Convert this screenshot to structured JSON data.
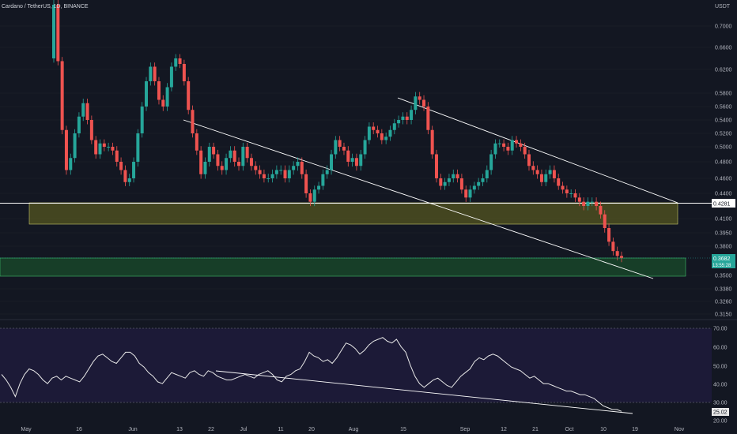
{
  "header": {
    "symbol_title": "Cardano / TetherUS, 1D, BINANCE",
    "currency": "USDT"
  },
  "colors": {
    "background": "#131722",
    "up": "#26a69a",
    "down": "#ef5350",
    "resistance_zone": "#8a8a2a",
    "support_zone": "#1f7a3c",
    "rsi_band": "#1e1b3a",
    "line": "#ffffff"
  },
  "price_axis": {
    "ticks": [
      "0.7000",
      "0.6600",
      "0.6200",
      "0.5800",
      "0.5600",
      "0.5400",
      "0.5200",
      "0.5000",
      "0.4800",
      "0.4600",
      "0.4400",
      "0.4100",
      "0.3950",
      "0.3800",
      "0.3500",
      "0.3380",
      "0.3260",
      "0.3150"
    ],
    "level_tag": "0.4281",
    "last_price_tag": "0.3682",
    "countdown_tag": "13:55:28"
  },
  "rsi_axis": {
    "ticks": [
      "70.00",
      "60.00",
      "50.00",
      "40.00",
      "30.00",
      "20.00"
    ],
    "value_tag": "25.02"
  },
  "time_axis": {
    "ticks": [
      "May",
      "16",
      "Jun",
      "13",
      "22",
      "Jul",
      "11",
      "20",
      "Aug",
      "15",
      "Sep",
      "12",
      "21",
      "Oct",
      "10",
      "19",
      "Nov"
    ]
  },
  "chart_data": {
    "type": "candlestick",
    "symbol": "Cardano / TetherUS",
    "interval": "1D",
    "exchange": "BINANCE",
    "price_range": [
      0.31,
      0.75
    ],
    "horizontal_level": 0.4281,
    "resistance_zone": [
      0.403,
      0.4281
    ],
    "support_zone": [
      0.35,
      0.368
    ],
    "last_price": 0.3682,
    "close_series_estimated": [
      0.74,
      0.635,
      0.525,
      0.47,
      0.485,
      0.52,
      0.545,
      0.565,
      0.54,
      0.51,
      0.49,
      0.505,
      0.5,
      0.5,
      0.495,
      0.48,
      0.47,
      0.455,
      0.46,
      0.48,
      0.52,
      0.56,
      0.6,
      0.625,
      0.6,
      0.57,
      0.56,
      0.59,
      0.625,
      0.64,
      0.63,
      0.6,
      0.555,
      0.52,
      0.495,
      0.465,
      0.48,
      0.5,
      0.49,
      0.475,
      0.47,
      0.485,
      0.495,
      0.48,
      0.475,
      0.5,
      0.485,
      0.475,
      0.47,
      0.465,
      0.46,
      0.46,
      0.465,
      0.47,
      0.47,
      0.46,
      0.47,
      0.475,
      0.48,
      0.465,
      0.44,
      0.43,
      0.445,
      0.45,
      0.465,
      0.47,
      0.49,
      0.51,
      0.5,
      0.495,
      0.48,
      0.485,
      0.475,
      0.49,
      0.51,
      0.53,
      0.525,
      0.52,
      0.51,
      0.515,
      0.525,
      0.535,
      0.54,
      0.545,
      0.54,
      0.555,
      0.575,
      0.57,
      0.56,
      0.525,
      0.49,
      0.46,
      0.45,
      0.455,
      0.46,
      0.465,
      0.46,
      0.445,
      0.435,
      0.445,
      0.45,
      0.455,
      0.46,
      0.47,
      0.49,
      0.505,
      0.505,
      0.5,
      0.495,
      0.51,
      0.505,
      0.5,
      0.49,
      0.475,
      0.47,
      0.465,
      0.455,
      0.465,
      0.47,
      0.46,
      0.45,
      0.445,
      0.44,
      0.44,
      0.435,
      0.43,
      0.425,
      0.43,
      0.43,
      0.425,
      0.415,
      0.4,
      0.385,
      0.375,
      0.37,
      0.368
    ],
    "rsi_series_estimated": [
      45,
      42,
      38,
      33,
      40,
      45,
      48,
      47,
      45,
      42,
      40,
      43,
      44,
      42,
      44,
      43,
      42,
      41,
      44,
      48,
      52,
      55,
      56,
      54,
      52,
      51,
      54,
      57,
      57,
      55,
      51,
      49,
      46,
      44,
      41,
      40,
      43,
      46,
      45,
      44,
      43,
      46,
      47,
      45,
      44,
      47,
      46,
      44,
      43,
      42,
      42,
      43,
      44,
      45,
      44,
      43,
      45,
      46,
      47,
      45,
      42,
      41,
      44,
      45,
      47,
      48,
      52,
      57,
      55,
      54,
      52,
      53,
      51,
      54,
      58,
      62,
      61,
      59,
      56,
      58,
      61,
      63,
      64,
      65,
      63,
      62,
      64,
      60,
      57,
      50,
      44,
      40,
      38,
      40,
      42,
      43,
      41,
      39,
      38,
      41,
      44,
      46,
      48,
      52,
      54,
      53,
      55,
      56,
      55,
      53,
      51,
      49,
      48,
      47,
      45,
      43,
      44,
      42,
      40,
      40,
      39,
      38,
      37,
      36,
      36,
      35,
      34,
      34,
      33,
      32,
      30,
      28,
      27,
      26,
      26,
      25
    ],
    "rsi_range": [
      20,
      72
    ],
    "rsi_band": [
      30,
      70
    ],
    "rsi_last": 25.02
  }
}
